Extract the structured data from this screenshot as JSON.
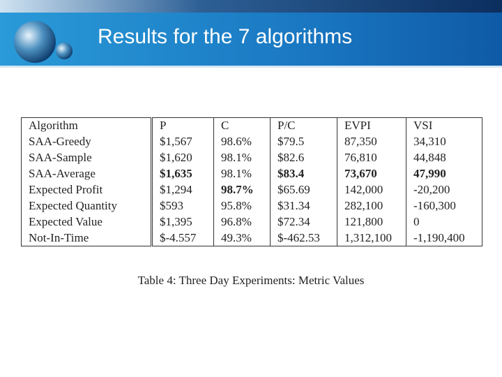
{
  "header": {
    "title": "Results for the 7 algorithms"
  },
  "table": {
    "columns": [
      "Algorithm",
      "P",
      "C",
      "P/C",
      "EVPI",
      "VSI"
    ],
    "rows": [
      [
        "SAA-Greedy",
        "$1,567",
        "98.6%",
        "$79.5",
        "87,350",
        "34,310"
      ],
      [
        "SAA-Sample",
        "$1,620",
        "98.1%",
        "$82.6",
        "76,810",
        "44,848"
      ],
      [
        "SAA-Average",
        "$1,635",
        "98.1%",
        "$83.4",
        "73,670",
        "47,990"
      ],
      [
        "Expected Profit",
        "$1,294",
        "98.7%",
        "$65.69",
        "142,000",
        "-20,200"
      ],
      [
        "Expected Quantity",
        "$593",
        "95.8%",
        "$31.34",
        "282,100",
        "-160,300"
      ],
      [
        "Expected Value",
        "$1,395",
        "96.8%",
        "$72.34",
        "121,800",
        "0"
      ],
      [
        "Not-In-Time",
        "$-4.557",
        "49.3%",
        "$-462.53",
        "1,312,100",
        "-1,190,400"
      ]
    ],
    "caption": "Table 4: Three Day Experiments: Metric Values"
  }
}
